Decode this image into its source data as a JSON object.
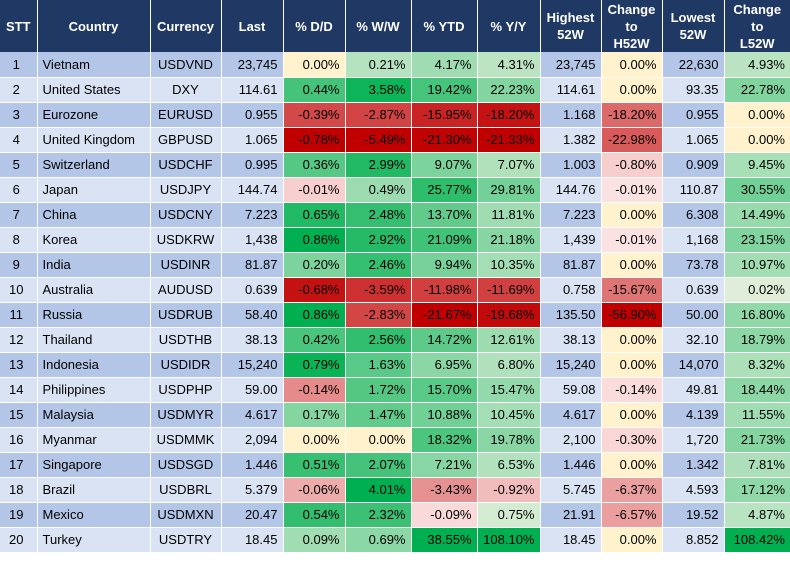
{
  "headers": [
    "STT",
    "Country",
    "Currency",
    "Last",
    "% D/D",
    "% W/W",
    "% YTD",
    "% Y/Y",
    "Highest 52W",
    "Change to H52W",
    "Lowest 52W",
    "Change to L52W"
  ],
  "rows": [
    {
      "stt": "1",
      "country": "Vietnam",
      "currency": "USDVND",
      "last": "23,745",
      "dd": "0.00%",
      "ww": "0.21%",
      "ytd": "4.17%",
      "yy": "4.31%",
      "high": "23,745",
      "chh": "0.00%",
      "low": "22,630",
      "chl": "4.93%"
    },
    {
      "stt": "2",
      "country": "United States",
      "currency": "DXY",
      "last": "114.61",
      "dd": "0.44%",
      "ww": "3.58%",
      "ytd": "19.42%",
      "yy": "22.23%",
      "high": "114.61",
      "chh": "0.00%",
      "low": "93.35",
      "chl": "22.78%"
    },
    {
      "stt": "3",
      "country": "Eurozone",
      "currency": "EURUSD",
      "last": "0.955",
      "dd": "-0.39%",
      "ww": "-2.87%",
      "ytd": "-15.95%",
      "yy": "-18.20%",
      "high": "1.168",
      "chh": "-18.20%",
      "low": "0.955",
      "chl": "0.00%"
    },
    {
      "stt": "4",
      "country": "United Kingdom",
      "currency": "GBPUSD",
      "last": "1.065",
      "dd": "-0.78%",
      "ww": "-5.49%",
      "ytd": "-21.30%",
      "yy": "-21.33%",
      "high": "1.382",
      "chh": "-22.98%",
      "low": "1.065",
      "chl": "0.00%"
    },
    {
      "stt": "5",
      "country": "Switzerland",
      "currency": "USDCHF",
      "last": "0.995",
      "dd": "0.36%",
      "ww": "2.99%",
      "ytd": "9.07%",
      "yy": "7.07%",
      "high": "1.003",
      "chh": "-0.80%",
      "low": "0.909",
      "chl": "9.45%"
    },
    {
      "stt": "6",
      "country": "Japan",
      "currency": "USDJPY",
      "last": "144.74",
      "dd": "-0.01%",
      "ww": "0.49%",
      "ytd": "25.77%",
      "yy": "29.81%",
      "high": "144.76",
      "chh": "-0.01%",
      "low": "110.87",
      "chl": "30.55%"
    },
    {
      "stt": "7",
      "country": "China",
      "currency": "USDCNY",
      "last": "7.223",
      "dd": "0.65%",
      "ww": "2.48%",
      "ytd": "13.70%",
      "yy": "11.81%",
      "high": "7.223",
      "chh": "0.00%",
      "low": "6.308",
      "chl": "14.49%"
    },
    {
      "stt": "8",
      "country": "Korea",
      "currency": "USDKRW",
      "last": "1,438",
      "dd": "0.86%",
      "ww": "2.92%",
      "ytd": "21.09%",
      "yy": "21.18%",
      "high": "1,439",
      "chh": "-0.01%",
      "low": "1,168",
      "chl": "23.15%"
    },
    {
      "stt": "9",
      "country": "India",
      "currency": "USDINR",
      "last": "81.87",
      "dd": "0.20%",
      "ww": "2.46%",
      "ytd": "9.94%",
      "yy": "10.35%",
      "high": "81.87",
      "chh": "0.00%",
      "low": "73.78",
      "chl": "10.97%"
    },
    {
      "stt": "10",
      "country": "Australia",
      "currency": "AUDUSD",
      "last": "0.639",
      "dd": "-0.68%",
      "ww": "-3.59%",
      "ytd": "-11.98%",
      "yy": "-11.69%",
      "high": "0.758",
      "chh": "-15.67%",
      "low": "0.639",
      "chl": "0.02%"
    },
    {
      "stt": "11",
      "country": "Russia",
      "currency": "USDRUB",
      "last": "58.40",
      "dd": "0.86%",
      "ww": "-2.83%",
      "ytd": "-21.67%",
      "yy": "-19.68%",
      "high": "135.50",
      "chh": "-56.90%",
      "low": "50.00",
      "chl": "16.80%"
    },
    {
      "stt": "12",
      "country": "Thailand",
      "currency": "USDTHB",
      "last": "38.13",
      "dd": "0.42%",
      "ww": "2.56%",
      "ytd": "14.72%",
      "yy": "12.61%",
      "high": "38.13",
      "chh": "0.00%",
      "low": "32.10",
      "chl": "18.79%"
    },
    {
      "stt": "13",
      "country": "Indonesia",
      "currency": "USDIDR",
      "last": "15,240",
      "dd": "0.79%",
      "ww": "1.63%",
      "ytd": "6.95%",
      "yy": "6.80%",
      "high": "15,240",
      "chh": "0.00%",
      "low": "14,070",
      "chl": "8.32%"
    },
    {
      "stt": "14",
      "country": "Philippines",
      "currency": "USDPHP",
      "last": "59.00",
      "dd": "-0.14%",
      "ww": "1.72%",
      "ytd": "15.70%",
      "yy": "15.47%",
      "high": "59.08",
      "chh": "-0.14%",
      "low": "49.81",
      "chl": "18.44%"
    },
    {
      "stt": "15",
      "country": "Malaysia",
      "currency": "USDMYR",
      "last": "4.617",
      "dd": "0.17%",
      "ww": "1.47%",
      "ytd": "10.88%",
      "yy": "10.45%",
      "high": "4.617",
      "chh": "0.00%",
      "low": "4.139",
      "chl": "11.55%"
    },
    {
      "stt": "16",
      "country": "Myanmar",
      "currency": "USDMMK",
      "last": "2,094",
      "dd": "0.00%",
      "ww": "0.00%",
      "ytd": "18.32%",
      "yy": "19.78%",
      "high": "2,100",
      "chh": "-0.30%",
      "low": "1,720",
      "chl": "21.73%"
    },
    {
      "stt": "17",
      "country": "Singapore",
      "currency": "USDSGD",
      "last": "1.446",
      "dd": "0.51%",
      "ww": "2.07%",
      "ytd": "7.21%",
      "yy": "6.53%",
      "high": "1.446",
      "chh": "0.00%",
      "low": "1.342",
      "chl": "7.81%"
    },
    {
      "stt": "18",
      "country": "Brazil",
      "currency": "USDBRL",
      "last": "5.379",
      "dd": "-0.06%",
      "ww": "4.01%",
      "ytd": "-3.43%",
      "yy": "-0.92%",
      "high": "5.745",
      "chh": "-6.37%",
      "low": "4.593",
      "chl": "17.12%"
    },
    {
      "stt": "19",
      "country": "Mexico",
      "currency": "USDMXN",
      "last": "20.47",
      "dd": "0.54%",
      "ww": "2.32%",
      "ytd": "-0.09%",
      "yy": "0.75%",
      "high": "21.91",
      "chh": "-6.57%",
      "low": "19.52",
      "chl": "4.87%"
    },
    {
      "stt": "20",
      "country": "Turkey",
      "currency": "USDTRY",
      "last": "18.45",
      "dd": "0.09%",
      "ww": "0.69%",
      "ytd": "38.55%",
      "yy": "108.10%",
      "high": "18.45",
      "chh": "0.00%",
      "low": "8.852",
      "chl": "108.42%"
    }
  ],
  "colors": {
    "header_bg": "#1f3864",
    "row_odd": "#b4c6e7",
    "row_even": "#dae3f3",
    "zero": "#fff2cc",
    "pos_max": "#00b050",
    "pos_min": "#e2efda",
    "neg_max": "#c00000",
    "neg_min": "#fce4e4"
  }
}
